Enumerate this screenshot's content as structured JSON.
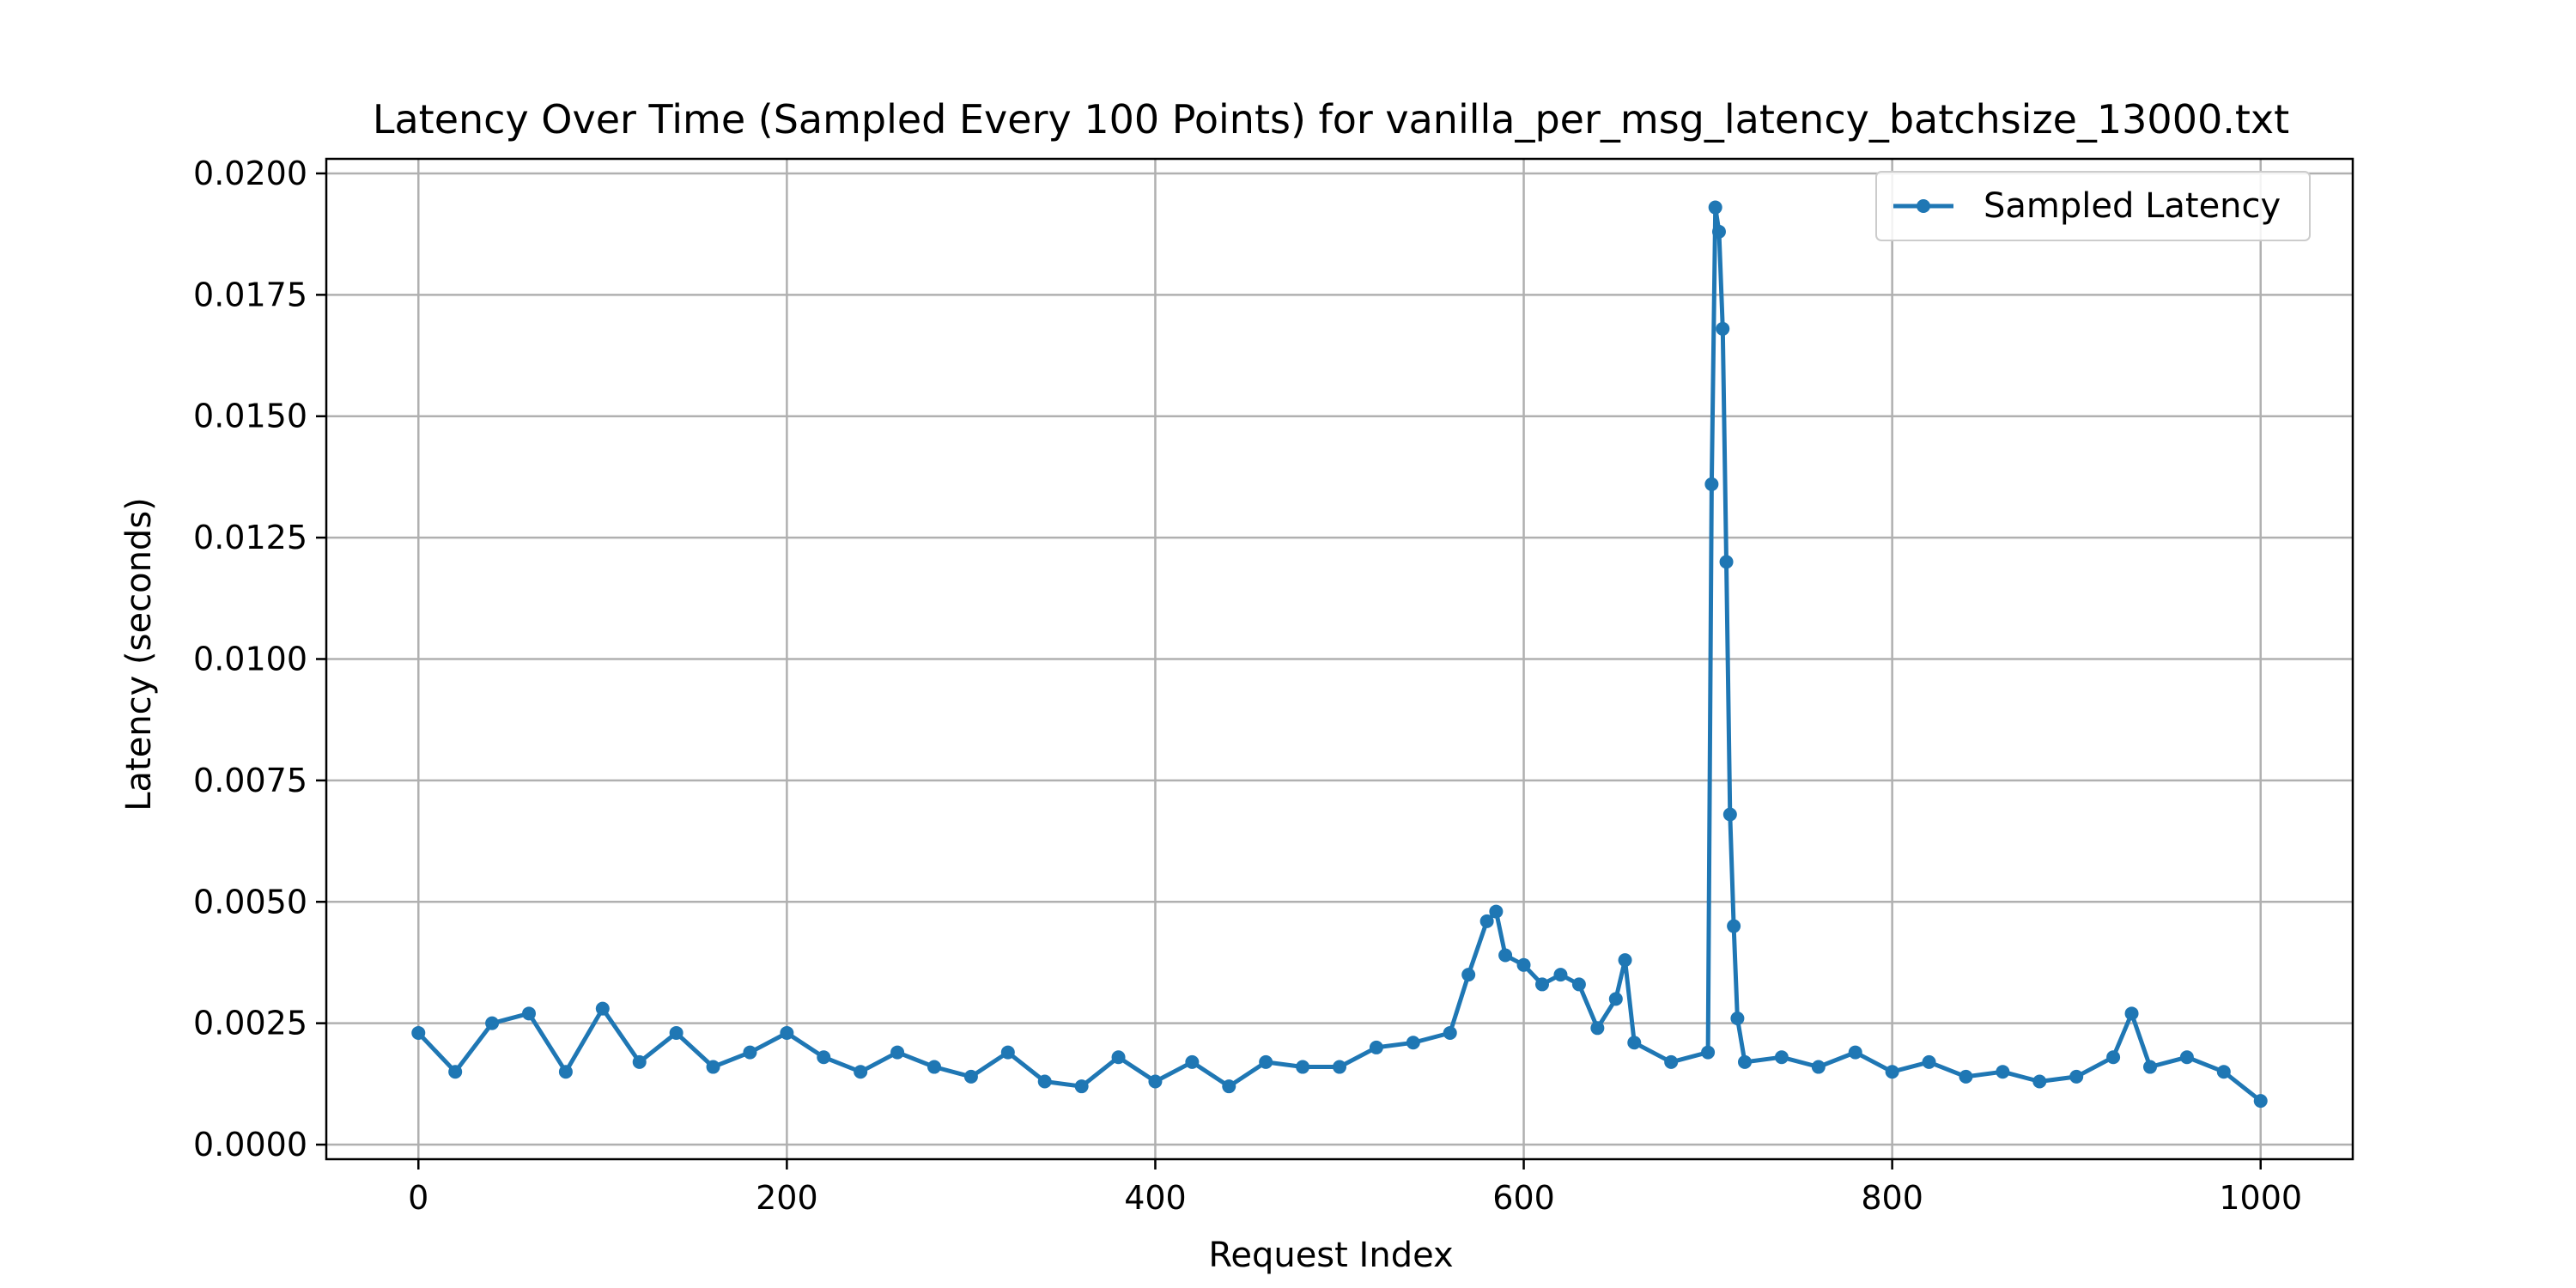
{
  "chart_data": {
    "type": "line",
    "title": "Latency Over Time (Sampled Every 100 Points) for vanilla_per_msg_latency_batchsize_13000.txt",
    "xlabel": "Request Index",
    "ylabel": "Latency (seconds)",
    "xlim": [
      -50,
      1050
    ],
    "ylim": [
      -0.0003,
      0.0203
    ],
    "xticks": [
      0,
      200,
      400,
      600,
      800,
      1000
    ],
    "xtick_labels": [
      "0",
      "200",
      "400",
      "600",
      "800",
      "1000"
    ],
    "yticks": [
      0.0,
      0.0025,
      0.005,
      0.0075,
      0.01,
      0.0125,
      0.015,
      0.0175,
      0.02
    ],
    "ytick_labels": [
      "0.0000",
      "0.0025",
      "0.0050",
      "0.0075",
      "0.0100",
      "0.0125",
      "0.0150",
      "0.0175",
      "0.0200"
    ],
    "grid": true,
    "legend": {
      "position": "top-right",
      "entries": [
        "Sampled Latency"
      ]
    },
    "series": [
      {
        "name": "Sampled Latency",
        "color": "#1f77b4",
        "marker": "circle",
        "x": [
          0,
          20,
          40,
          60,
          80,
          100,
          120,
          140,
          160,
          180,
          200,
          220,
          240,
          260,
          280,
          300,
          320,
          340,
          360,
          380,
          400,
          420,
          440,
          460,
          480,
          500,
          520,
          540,
          560,
          570,
          580,
          585,
          590,
          600,
          610,
          620,
          630,
          640,
          650,
          655,
          660,
          680,
          700,
          702,
          704,
          706,
          708,
          710,
          712,
          714,
          716,
          720,
          740,
          760,
          780,
          800,
          820,
          840,
          860,
          880,
          900,
          920,
          930,
          940,
          960,
          980,
          1000
        ],
        "y": [
          0.0023,
          0.0015,
          0.0025,
          0.0027,
          0.0015,
          0.0028,
          0.0017,
          0.0023,
          0.0016,
          0.0019,
          0.0023,
          0.0018,
          0.0015,
          0.0019,
          0.0016,
          0.0014,
          0.0019,
          0.0013,
          0.0012,
          0.0018,
          0.0013,
          0.0017,
          0.0012,
          0.0017,
          0.0016,
          0.0016,
          0.002,
          0.0021,
          0.0023,
          0.0035,
          0.0046,
          0.0048,
          0.0039,
          0.0037,
          0.0033,
          0.0035,
          0.0033,
          0.0024,
          0.003,
          0.0038,
          0.0021,
          0.0017,
          0.0019,
          0.0136,
          0.0193,
          0.0188,
          0.0168,
          0.012,
          0.0068,
          0.0045,
          0.0026,
          0.0017,
          0.0018,
          0.0016,
          0.0019,
          0.0015,
          0.0017,
          0.0014,
          0.0015,
          0.0013,
          0.0014,
          0.0018,
          0.0027,
          0.0016,
          0.0018,
          0.0015,
          0.0009
        ]
      }
    ]
  }
}
